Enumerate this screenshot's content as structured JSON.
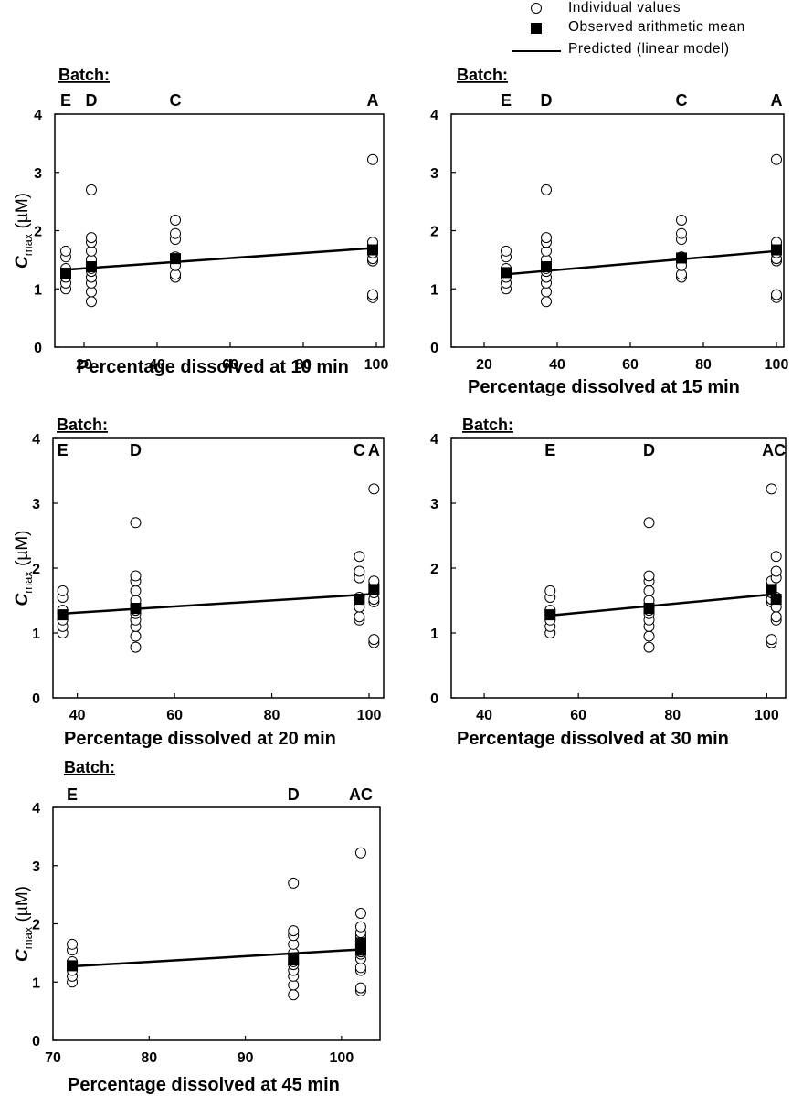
{
  "legend": {
    "individual": "Individual values",
    "mean": "Observed arithmetic mean",
    "predicted": "Predicted (linear model)"
  },
  "chart_data": [
    {
      "type": "scatter",
      "batch_label": "Batch:",
      "xlabel": "Percentage dissolved at 10 min",
      "ylabel": "Cmax (µM)",
      "ylabel_main": "C",
      "ylabel_sub": "max",
      "ylabel_unit": " (µM)",
      "xlim": [
        12,
        102
      ],
      "ylim": [
        0,
        4
      ],
      "xticks": [
        20,
        40,
        60,
        80,
        100
      ],
      "yticks": [
        0,
        1,
        2,
        3,
        4
      ],
      "batches": [
        {
          "name": "E",
          "x": 15
        },
        {
          "name": "D",
          "x": 22
        },
        {
          "name": "C",
          "x": 45
        },
        {
          "name": "A",
          "x": 99
        }
      ],
      "individual": [
        {
          "x": 15,
          "y": [
            1.0,
            1.1,
            1.2,
            1.3,
            1.35,
            1.55,
            1.65
          ]
        },
        {
          "x": 22,
          "y": [
            0.78,
            0.95,
            1.1,
            1.2,
            1.3,
            1.35,
            1.5,
            1.65,
            1.8,
            1.88,
            2.7
          ]
        },
        {
          "x": 45,
          "y": [
            1.2,
            1.25,
            1.4,
            1.55,
            1.85,
            1.95,
            2.18
          ]
        },
        {
          "x": 99,
          "y": [
            0.85,
            0.9,
            1.48,
            1.52,
            1.62,
            1.7,
            1.75,
            1.8,
            3.22
          ]
        }
      ],
      "mean": [
        {
          "x": 15,
          "y": 1.27
        },
        {
          "x": 22,
          "y": 1.38
        },
        {
          "x": 45,
          "y": 1.52
        },
        {
          "x": 99,
          "y": 1.67
        }
      ],
      "predicted": {
        "x": [
          15,
          99
        ],
        "y": [
          1.33,
          1.7
        ]
      }
    },
    {
      "type": "scatter",
      "batch_label": "Batch:",
      "xlabel": "Percentage dissolved at 15 min",
      "ylabel": "Cmax (µM)",
      "ylabel_main": "C",
      "ylabel_sub": "max",
      "ylabel_unit": " (µM)",
      "xlim": [
        11,
        102
      ],
      "ylim": [
        0,
        4
      ],
      "xticks": [
        20,
        40,
        60,
        80,
        100
      ],
      "yticks": [
        0,
        1,
        2,
        3,
        4
      ],
      "batches": [
        {
          "name": "E",
          "x": 26
        },
        {
          "name": "D",
          "x": 37
        },
        {
          "name": "C",
          "x": 74
        },
        {
          "name": "A",
          "x": 100
        }
      ],
      "individual": [
        {
          "x": 26,
          "y": [
            1.0,
            1.1,
            1.2,
            1.3,
            1.35,
            1.55,
            1.65
          ]
        },
        {
          "x": 37,
          "y": [
            0.78,
            0.95,
            1.1,
            1.2,
            1.3,
            1.35,
            1.5,
            1.65,
            1.8,
            1.88,
            2.7
          ]
        },
        {
          "x": 74,
          "y": [
            1.2,
            1.25,
            1.4,
            1.55,
            1.85,
            1.95,
            2.18
          ]
        },
        {
          "x": 100,
          "y": [
            0.85,
            0.9,
            1.48,
            1.52,
            1.62,
            1.7,
            1.75,
            1.8,
            3.22
          ]
        }
      ],
      "mean": [
        {
          "x": 26,
          "y": 1.28
        },
        {
          "x": 37,
          "y": 1.38
        },
        {
          "x": 74,
          "y": 1.53
        },
        {
          "x": 100,
          "y": 1.67
        }
      ],
      "predicted": {
        "x": [
          26,
          100
        ],
        "y": [
          1.25,
          1.65
        ]
      }
    },
    {
      "type": "scatter",
      "batch_label": "Batch:",
      "xlabel": "Percentage dissolved at 20 min",
      "ylabel": "Cmax (µM)",
      "ylabel_main": "C",
      "ylabel_sub": "max",
      "ylabel_unit": " (µM)",
      "xlim": [
        35,
        103
      ],
      "ylim": [
        0,
        4
      ],
      "xticks": [
        40,
        60,
        80,
        100
      ],
      "yticks": [
        0,
        1,
        2,
        3,
        4
      ],
      "batches": [
        {
          "name": "E",
          "x": 37
        },
        {
          "name": "D",
          "x": 52
        },
        {
          "name": "C",
          "x": 98
        },
        {
          "name": "A",
          "x": 101
        }
      ],
      "individual": [
        {
          "x": 37,
          "y": [
            1.0,
            1.1,
            1.2,
            1.3,
            1.35,
            1.55,
            1.65
          ]
        },
        {
          "x": 52,
          "y": [
            0.78,
            0.95,
            1.1,
            1.2,
            1.3,
            1.35,
            1.5,
            1.65,
            1.8,
            1.88,
            2.7
          ]
        },
        {
          "x": 98,
          "y": [
            1.2,
            1.25,
            1.4,
            1.55,
            1.85,
            1.95,
            2.18
          ]
        },
        {
          "x": 101,
          "y": [
            0.85,
            0.9,
            1.48,
            1.52,
            1.62,
            1.7,
            1.75,
            1.8,
            3.22
          ]
        }
      ],
      "mean": [
        {
          "x": 37,
          "y": 1.28
        },
        {
          "x": 52,
          "y": 1.38
        },
        {
          "x": 98,
          "y": 1.52
        },
        {
          "x": 101,
          "y": 1.67
        }
      ],
      "predicted": {
        "x": [
          37,
          101
        ],
        "y": [
          1.3,
          1.6
        ]
      }
    },
    {
      "type": "scatter",
      "batch_label": "Batch:",
      "xlabel": "Percentage dissolved at 30  min",
      "ylabel": "",
      "xlim": [
        33,
        104
      ],
      "ylim": [
        0,
        4
      ],
      "xticks": [
        40,
        60,
        80,
        100
      ],
      "yticks": [
        0,
        1,
        2,
        3,
        4
      ],
      "batches": [
        {
          "name": "E",
          "x": 54
        },
        {
          "name": "D",
          "x": 75
        },
        {
          "name": "AC",
          "x": 101.5
        }
      ],
      "individual": [
        {
          "x": 54,
          "y": [
            1.0,
            1.1,
            1.2,
            1.3,
            1.35,
            1.55,
            1.65
          ]
        },
        {
          "x": 75,
          "y": [
            0.78,
            0.95,
            1.1,
            1.2,
            1.3,
            1.35,
            1.5,
            1.65,
            1.8,
            1.88,
            2.7
          ]
        },
        {
          "x": 101,
          "y": [
            0.85,
            0.9,
            1.48,
            1.52,
            1.62,
            1.7,
            1.75,
            1.8,
            3.22
          ]
        },
        {
          "x": 102,
          "y": [
            1.2,
            1.25,
            1.4,
            1.55,
            1.85,
            1.95,
            2.18
          ]
        }
      ],
      "mean": [
        {
          "x": 54,
          "y": 1.28
        },
        {
          "x": 75,
          "y": 1.38
        },
        {
          "x": 101,
          "y": 1.67
        },
        {
          "x": 102,
          "y": 1.52
        }
      ],
      "predicted": {
        "x": [
          54,
          102
        ],
        "y": [
          1.27,
          1.6
        ]
      }
    },
    {
      "type": "scatter",
      "batch_label": "Batch:",
      "xlabel": "Percentage dissolved at 45 min",
      "ylabel": "Cmax (µM)",
      "ylabel_main": "C",
      "ylabel_sub": "max",
      "ylabel_unit": " (µM)",
      "xlim": [
        70,
        104
      ],
      "ylim": [
        0,
        4
      ],
      "xticks": [
        70,
        80,
        90,
        100
      ],
      "yticks": [
        0,
        1,
        2,
        3,
        4
      ],
      "batches": [
        {
          "name": "E",
          "x": 72
        },
        {
          "name": "D",
          "x": 95
        },
        {
          "name": "AC",
          "x": 102
        }
      ],
      "individual": [
        {
          "x": 72,
          "y": [
            1.0,
            1.1,
            1.2,
            1.3,
            1.35,
            1.55,
            1.65
          ]
        },
        {
          "x": 95,
          "y": [
            0.78,
            0.95,
            1.1,
            1.2,
            1.3,
            1.35,
            1.5,
            1.65,
            1.8,
            1.88,
            2.7
          ]
        },
        {
          "x": 102,
          "y": [
            0.85,
            0.9,
            1.2,
            1.25,
            1.4,
            1.48,
            1.52,
            1.55,
            1.62,
            1.7,
            1.75,
            1.8,
            1.85,
            1.95,
            2.18,
            3.22
          ]
        }
      ],
      "mean": [
        {
          "x": 72,
          "y": 1.28
        },
        {
          "x": 95,
          "y": 1.38
        },
        {
          "x": 102,
          "y": 1.55
        },
        {
          "x": 102,
          "y": 1.67
        }
      ],
      "predicted": {
        "x": [
          72,
          102
        ],
        "y": [
          1.27,
          1.56
        ]
      }
    }
  ]
}
